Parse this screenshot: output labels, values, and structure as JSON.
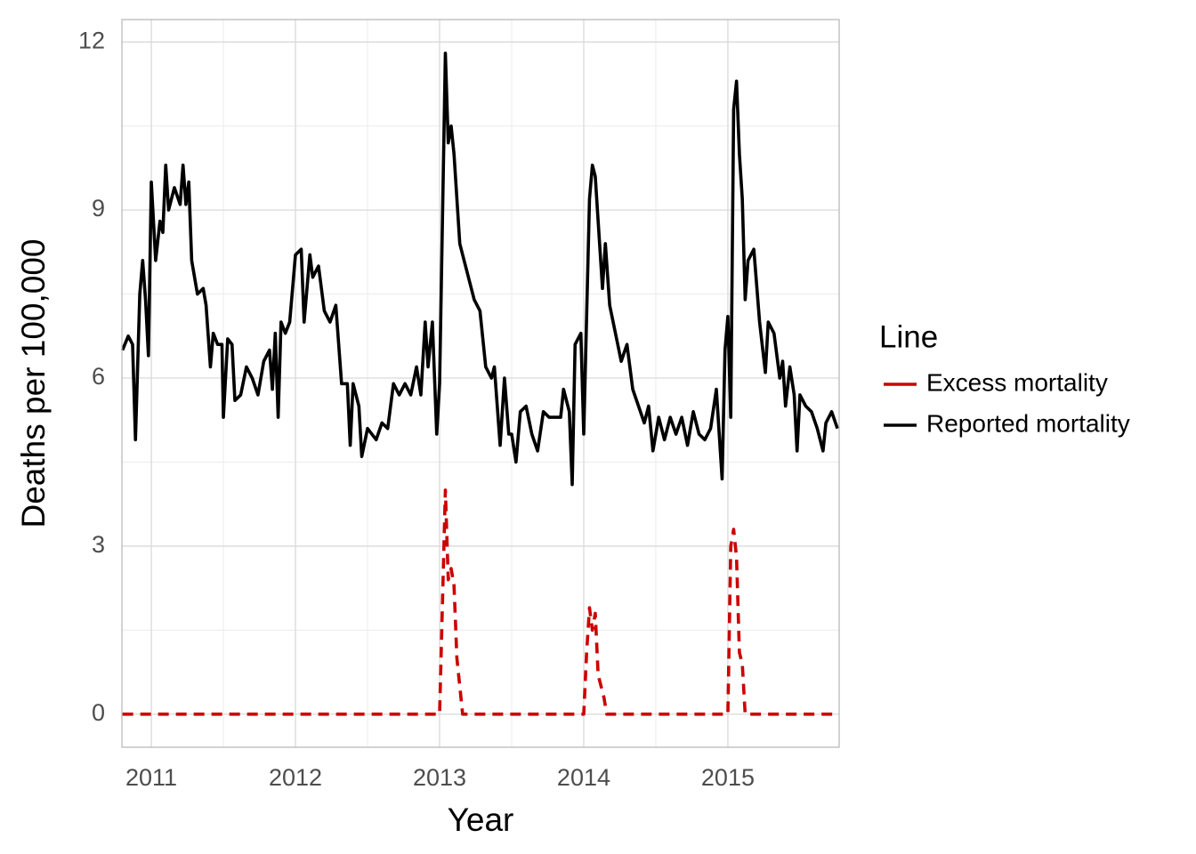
{
  "chart_data": {
    "type": "line",
    "x_label": "Year",
    "y_label": "Deaths per 100,000",
    "xlim": [
      2010.796,
      2015.772
    ],
    "ylim": [
      -0.59,
      12.4
    ],
    "xticks": [
      2011,
      2012,
      2013,
      2014,
      2015
    ],
    "yticks": [
      0,
      3,
      6,
      9,
      12
    ],
    "grid": true,
    "legend_title": "Line",
    "legend_position": "right",
    "series": [
      {
        "name": "Excess mortality",
        "color": "#cc0000",
        "linetype": "dashed",
        "x": [
          2010.8,
          2013.0,
          2013.02,
          2013.04,
          2013.06,
          2013.08,
          2013.1,
          2013.12,
          2013.16,
          2014.0,
          2014.02,
          2014.04,
          2014.06,
          2014.08,
          2014.1,
          2014.12,
          2014.14,
          2014.16,
          2014.2,
          2014.96,
          2015.0,
          2015.02,
          2015.04,
          2015.06,
          2015.08,
          2015.1,
          2015.12,
          2015.76
        ],
        "values": [
          0,
          0,
          2.0,
          4.0,
          2.4,
          2.6,
          2.3,
          1.0,
          0,
          0,
          1.1,
          1.9,
          1.5,
          1.8,
          0.7,
          0.5,
          0.3,
          0,
          0,
          0,
          0,
          3.0,
          3.3,
          2.8,
          1.1,
          0.9,
          0,
          0
        ]
      },
      {
        "name": "Reported mortality",
        "color": "#000000",
        "linetype": "solid",
        "x": [
          2010.8,
          2010.84,
          2010.87,
          2010.89,
          2010.92,
          2010.94,
          2010.96,
          2010.98,
          2011.0,
          2011.03,
          2011.06,
          2011.08,
          2011.1,
          2011.12,
          2011.16,
          2011.2,
          2011.22,
          2011.24,
          2011.26,
          2011.28,
          2011.32,
          2011.36,
          2011.38,
          2011.41,
          2011.43,
          2011.46,
          2011.49,
          2011.5,
          2011.53,
          2011.56,
          2011.58,
          2011.62,
          2011.66,
          2011.7,
          2011.74,
          2011.78,
          2011.82,
          2011.84,
          2011.86,
          2011.88,
          2011.9,
          2011.93,
          2011.96,
          2012.0,
          2012.04,
          2012.06,
          2012.08,
          2012.1,
          2012.12,
          2012.16,
          2012.2,
          2012.24,
          2012.28,
          2012.32,
          2012.36,
          2012.38,
          2012.4,
          2012.44,
          2012.46,
          2012.5,
          2012.56,
          2012.6,
          2012.64,
          2012.68,
          2012.72,
          2012.76,
          2012.8,
          2012.84,
          2012.87,
          2012.9,
          2012.92,
          2012.95,
          2012.98,
          2013.0,
          2013.04,
          2013.06,
          2013.08,
          2013.1,
          2013.14,
          2013.18,
          2013.24,
          2013.28,
          2013.32,
          2013.36,
          2013.38,
          2013.42,
          2013.45,
          2013.48,
          2013.5,
          2013.53,
          2013.56,
          2013.6,
          2013.64,
          2013.68,
          2013.72,
          2013.76,
          2013.8,
          2013.84,
          2013.86,
          2013.9,
          2013.92,
          2013.94,
          2013.98,
          2014.0,
          2014.04,
          2014.06,
          2014.08,
          2014.1,
          2014.13,
          2014.15,
          2014.18,
          2014.22,
          2014.26,
          2014.3,
          2014.34,
          2014.38,
          2014.42,
          2014.45,
          2014.48,
          2014.52,
          2014.56,
          2014.6,
          2014.64,
          2014.68,
          2014.72,
          2014.76,
          2014.8,
          2014.84,
          2014.88,
          2014.92,
          2014.96,
          2014.98,
          2015.0,
          2015.02,
          2015.04,
          2015.06,
          2015.08,
          2015.1,
          2015.12,
          2015.14,
          2015.18,
          2015.22,
          2015.26,
          2015.28,
          2015.32,
          2015.36,
          2015.38,
          2015.4,
          2015.43,
          2015.46,
          2015.48,
          2015.5,
          2015.54,
          2015.58,
          2015.62,
          2015.66,
          2015.68,
          2015.72,
          2015.76
        ],
        "values": [
          6.5,
          6.75,
          6.6,
          4.9,
          7.5,
          8.1,
          7.4,
          6.4,
          9.5,
          8.1,
          8.8,
          8.6,
          9.8,
          9.0,
          9.4,
          9.1,
          9.8,
          9.1,
          9.5,
          8.1,
          7.5,
          7.6,
          7.3,
          6.2,
          6.8,
          6.6,
          6.6,
          5.3,
          6.7,
          6.6,
          5.6,
          5.7,
          6.2,
          6.0,
          5.7,
          6.3,
          6.5,
          5.8,
          6.8,
          5.3,
          7.0,
          6.8,
          7.0,
          8.2,
          8.3,
          7.0,
          7.6,
          8.2,
          7.8,
          8.0,
          7.2,
          7.0,
          7.3,
          5.9,
          5.9,
          4.8,
          5.9,
          5.5,
          4.6,
          5.1,
          4.9,
          5.2,
          5.1,
          5.9,
          5.7,
          5.9,
          5.7,
          6.2,
          5.7,
          7.0,
          6.2,
          7.0,
          5.0,
          5.9,
          11.8,
          10.2,
          10.5,
          10.0,
          8.4,
          8.0,
          7.4,
          7.2,
          6.2,
          6.0,
          6.2,
          4.8,
          6.0,
          5.0,
          5.0,
          4.5,
          5.4,
          5.5,
          5.0,
          4.7,
          5.4,
          5.3,
          5.3,
          5.3,
          5.8,
          5.4,
          4.1,
          6.6,
          6.8,
          5.0,
          9.2,
          9.8,
          9.6,
          8.8,
          7.6,
          8.4,
          7.3,
          6.8,
          6.3,
          6.6,
          5.8,
          5.5,
          5.2,
          5.5,
          4.7,
          5.3,
          4.9,
          5.3,
          5.0,
          5.3,
          4.8,
          5.4,
          5.0,
          4.9,
          5.1,
          5.8,
          4.2,
          6.5,
          7.1,
          5.3,
          10.8,
          11.3,
          10.0,
          9.2,
          7.4,
          8.1,
          8.3,
          7.0,
          6.1,
          7.0,
          6.8,
          6.0,
          6.3,
          5.5,
          6.2,
          5.7,
          4.7,
          5.7,
          5.5,
          5.4,
          5.1,
          4.7,
          5.2,
          5.4,
          5.1
        ]
      }
    ]
  }
}
